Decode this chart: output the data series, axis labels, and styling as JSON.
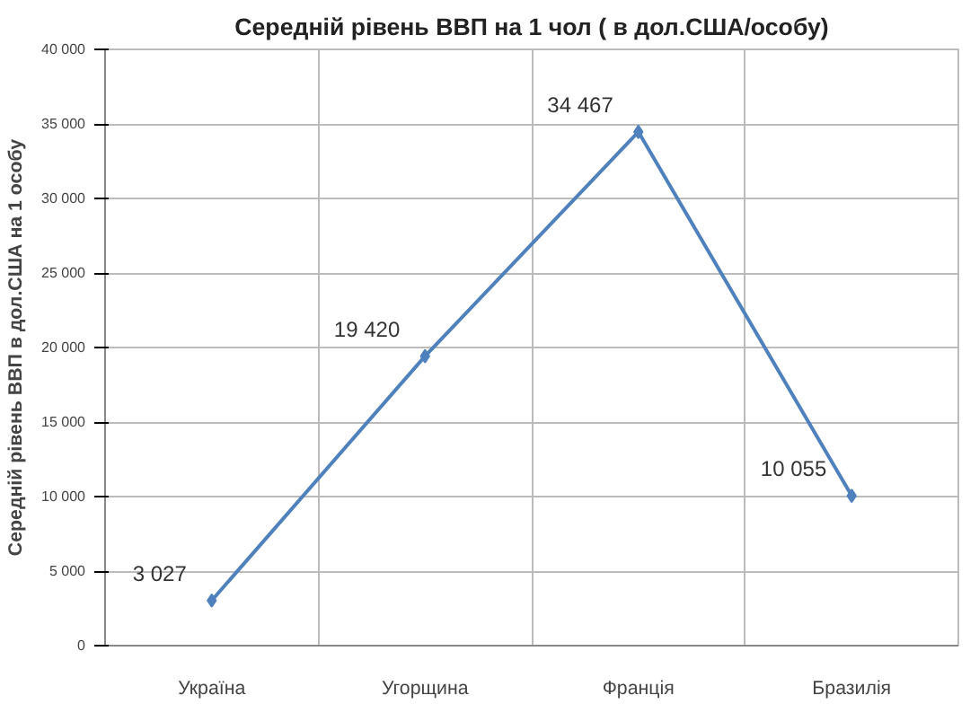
{
  "chart_data": {
    "type": "line",
    "title": "Середній рівень ВВП на 1 чол ( в дол.США/особу)",
    "ylabel": "Середній рівень ВВП в дол.США на 1 особу",
    "categories": [
      "Україна",
      "Угорщина",
      "Франція",
      "Бразилія"
    ],
    "series": [
      {
        "color": "#4f81bd",
        "values": [
          3027,
          19420,
          34467,
          10055
        ],
        "value_labels": [
          "3 027",
          "19 420",
          "34 467",
          "10 055"
        ]
      }
    ],
    "ylim": [
      0,
      40000
    ],
    "yticks": [
      0,
      {
        "value": 5000,
        "label": "5 000"
      },
      {
        "value": 10000,
        "label": "10 000"
      },
      {
        "value": 15000,
        "label": "15 000"
      },
      {
        "value": 20000,
        "label": "20 000"
      },
      {
        "value": 25000,
        "label": "25 000"
      },
      {
        "value": 30000,
        "label": "30 000"
      },
      {
        "value": 35000,
        "label": "35 000"
      },
      {
        "value": 40000,
        "label": "40 000"
      }
    ],
    "grid": true,
    "marker": "diamond",
    "line_style": "solid"
  }
}
